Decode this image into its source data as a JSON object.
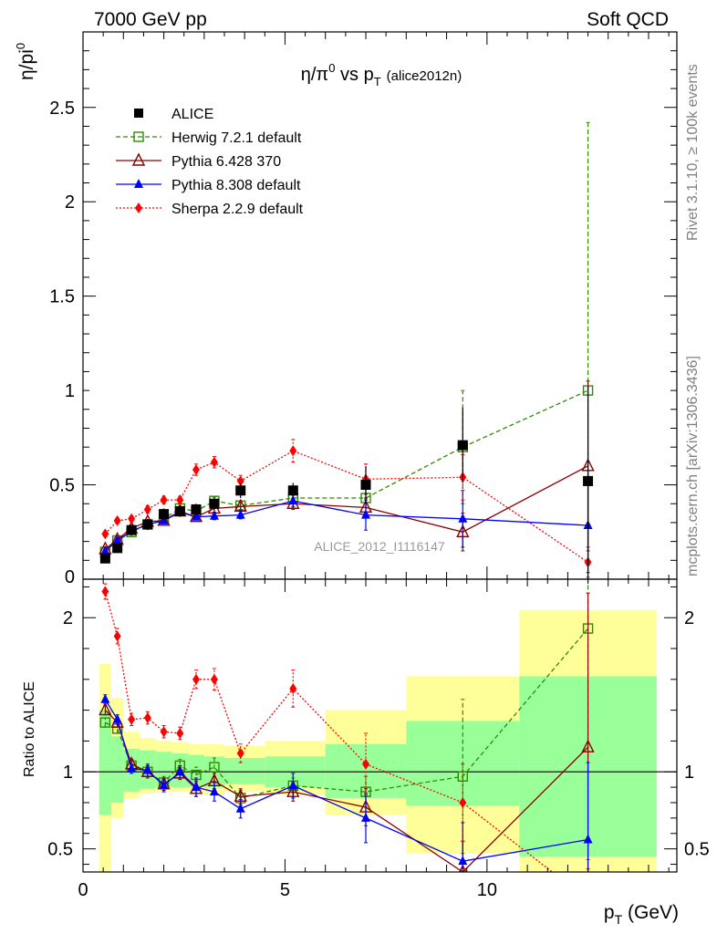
{
  "header": {
    "left": "7000 GeV pp",
    "right": "Soft QCD"
  },
  "side_labels": {
    "rivet": "Rivet 3.1.10, ≥ 100k events",
    "mcplots": "mcplots.cern.ch [arXiv:1306.3436]"
  },
  "watermark": "ALICE_2012_I1116147",
  "chart_data": {
    "type": "line",
    "title": "η/π⁰ vs p_T (alice2012n)",
    "title_parts": {
      "main": "η/π",
      "sup": "0",
      "mid": " vs p",
      "sub": "T",
      "tag": "(alice2012n)"
    },
    "xlabel": "p_T (GeV)",
    "xlabel_parts": {
      "main": "p",
      "sub": "T",
      "unit": " (GeV)"
    },
    "ylabel": "η/pi⁰",
    "ylabel_parts": {
      "main": "η/pi",
      "sup": "0"
    },
    "ratio_ylabel": "Ratio to ALICE",
    "xlim": [
      0,
      14.7
    ],
    "ylim": [
      0,
      2.9
    ],
    "ratio_ylim": [
      0.35,
      2.25
    ],
    "x_ticks": [
      0,
      5,
      10
    ],
    "y_ticks": [
      0.5,
      1,
      1.5,
      2,
      2.5
    ],
    "y_tick_labels": [
      "0.5",
      "1",
      "1.5",
      "2",
      "2.5"
    ],
    "y_bottom_label": "0",
    "ratio_ticks": [
      0.5,
      1,
      2
    ],
    "ratio_tick_labels": [
      "0.5",
      "1",
      "2"
    ],
    "grid": false,
    "legend_position": "top-left",
    "data": {
      "name": "ALICE",
      "color": "#000000",
      "x": [
        0.55,
        0.85,
        1.2,
        1.6,
        2.0,
        2.4,
        2.8,
        3.25,
        3.9,
        5.2,
        7.0,
        9.4,
        12.5
      ],
      "y": [
        0.11,
        0.165,
        0.26,
        0.29,
        0.345,
        0.36,
        0.37,
        0.4,
        0.47,
        0.47,
        0.5,
        0.71,
        0.52
      ],
      "yerr": [
        0.02,
        0.02,
        0.03,
        0.03,
        0.03,
        0.03,
        0.03,
        0.035,
        0.04,
        0.04,
        0.1,
        0.2,
        0.5
      ]
    },
    "ratio_bands": {
      "x_edges": [
        0.4,
        0.7,
        1.0,
        1.4,
        1.8,
        2.2,
        2.6,
        3.0,
        3.5,
        4.5,
        6.0,
        8.0,
        10.8,
        14.2
      ],
      "green": [
        [
          0.72,
          1.4
        ],
        [
          0.8,
          1.23
        ],
        [
          0.87,
          1.15
        ],
        [
          0.89,
          1.14
        ],
        [
          0.9,
          1.13
        ],
        [
          0.9,
          1.12
        ],
        [
          0.9,
          1.11
        ],
        [
          0.9,
          1.1
        ],
        [
          0.92,
          1.09
        ],
        [
          0.9,
          1.1
        ],
        [
          0.83,
          1.18
        ],
        [
          0.78,
          1.33
        ],
        [
          0.45,
          1.62
        ]
      ],
      "yellow": [
        [
          0.35,
          1.7
        ],
        [
          0.7,
          1.48
        ],
        [
          0.83,
          1.26
        ],
        [
          0.86,
          1.22
        ],
        [
          0.87,
          1.2
        ],
        [
          0.87,
          1.19
        ],
        [
          0.86,
          1.18
        ],
        [
          0.85,
          1.18
        ],
        [
          0.87,
          1.17
        ],
        [
          0.85,
          1.2
        ],
        [
          0.72,
          1.4
        ],
        [
          0.47,
          1.62
        ],
        [
          0.35,
          2.05
        ]
      ]
    },
    "series": [
      {
        "name": "Herwig 7.2.1 default",
        "color": "#2e8b00",
        "dash": "5,3",
        "marker": "open-square",
        "x": [
          0.55,
          0.85,
          1.2,
          1.6,
          2.0,
          2.4,
          2.8,
          3.25,
          3.9,
          5.2,
          7.0,
          9.4,
          12.5
        ],
        "y": [
          0.145,
          0.205,
          0.25,
          0.29,
          0.32,
          0.375,
          0.36,
          0.415,
          0.39,
          0.43,
          0.43,
          0.7,
          1.0
        ],
        "yerr": [
          0.01,
          0.01,
          0.01,
          0.01,
          0.015,
          0.015,
          0.015,
          0.02,
          0.02,
          0.02,
          0.05,
          0.3,
          1.42
        ],
        "ratio": [
          1.32,
          1.28,
          1.04,
          1.0,
          0.93,
          1.04,
          0.98,
          1.03,
          0.83,
          0.91,
          0.87,
          0.97,
          1.93
        ],
        "ratio_err": [
          0.03,
          0.03,
          0.03,
          0.03,
          0.04,
          0.04,
          0.05,
          0.06,
          0.05,
          0.05,
          0.1,
          0.5,
          1.5
        ]
      },
      {
        "name": "Pythia 6.428 370",
        "color": "#8b0000",
        "dash": "",
        "marker": "open-triangle",
        "x": [
          0.55,
          0.85,
          1.2,
          1.6,
          2.0,
          2.4,
          2.8,
          3.25,
          3.9,
          5.2,
          7.0,
          9.4,
          12.5
        ],
        "y": [
          0.16,
          0.21,
          0.27,
          0.305,
          0.31,
          0.36,
          0.33,
          0.375,
          0.385,
          0.4,
          0.38,
          0.25,
          0.6
        ],
        "yerr": [
          0.01,
          0.01,
          0.01,
          0.01,
          0.015,
          0.015,
          0.015,
          0.02,
          0.02,
          0.03,
          0.05,
          0.1,
          0.45
        ],
        "ratio": [
          1.4,
          1.32,
          1.05,
          1.0,
          0.92,
          0.99,
          0.89,
          0.94,
          0.84,
          0.87,
          0.77,
          0.35,
          1.16
        ],
        "ratio_err": [
          0.03,
          0.03,
          0.03,
          0.04,
          0.04,
          0.04,
          0.05,
          0.05,
          0.05,
          0.06,
          0.12,
          0.2,
          1.0
        ]
      },
      {
        "name": "Pythia 8.308 default",
        "color": "#0000ff",
        "dash": "",
        "marker": "filled-triangle",
        "x": [
          0.55,
          0.85,
          1.2,
          1.6,
          2.0,
          2.4,
          2.8,
          3.25,
          3.9,
          5.2,
          7.0,
          9.4,
          12.5
        ],
        "y": [
          0.15,
          0.205,
          0.255,
          0.29,
          0.31,
          0.355,
          0.33,
          0.335,
          0.34,
          0.415,
          0.34,
          0.32,
          0.285
        ],
        "yerr": [
          0.01,
          0.01,
          0.01,
          0.01,
          0.015,
          0.015,
          0.015,
          0.02,
          0.02,
          0.03,
          0.08,
          0.15,
          0.25
        ],
        "ratio": [
          1.47,
          1.34,
          1.02,
          1.01,
          0.91,
          1.0,
          0.9,
          0.87,
          0.76,
          0.91,
          0.7,
          0.42,
          0.56
        ],
        "ratio_err": [
          0.03,
          0.03,
          0.03,
          0.04,
          0.04,
          0.04,
          0.06,
          0.06,
          0.06,
          0.08,
          0.16,
          0.25,
          0.5
        ]
      },
      {
        "name": "Sherpa 2.2.9 default",
        "color": "#ff0000",
        "dash": "2,2",
        "marker": "filled-diamond",
        "x": [
          0.55,
          0.85,
          1.2,
          1.6,
          2.0,
          2.4,
          2.8,
          3.25,
          3.9,
          5.2,
          7.0,
          9.4,
          12.5
        ],
        "y": [
          0.24,
          0.31,
          0.32,
          0.37,
          0.42,
          0.42,
          0.58,
          0.62,
          0.52,
          0.68,
          0.53,
          0.54,
          0.09
        ],
        "yerr": [
          0.015,
          0.015,
          0.015,
          0.02,
          0.02,
          0.02,
          0.03,
          0.03,
          0.03,
          0.06,
          0.08,
          0.12,
          0.08
        ],
        "ratio": [
          2.17,
          1.88,
          1.34,
          1.35,
          1.26,
          1.25,
          1.6,
          1.6,
          1.12,
          1.54,
          1.05,
          0.8,
          0.17
        ],
        "ratio_err": [
          0.05,
          0.05,
          0.04,
          0.04,
          0.04,
          0.04,
          0.06,
          0.07,
          0.06,
          0.12,
          0.2,
          0.25,
          0.2
        ]
      }
    ]
  }
}
